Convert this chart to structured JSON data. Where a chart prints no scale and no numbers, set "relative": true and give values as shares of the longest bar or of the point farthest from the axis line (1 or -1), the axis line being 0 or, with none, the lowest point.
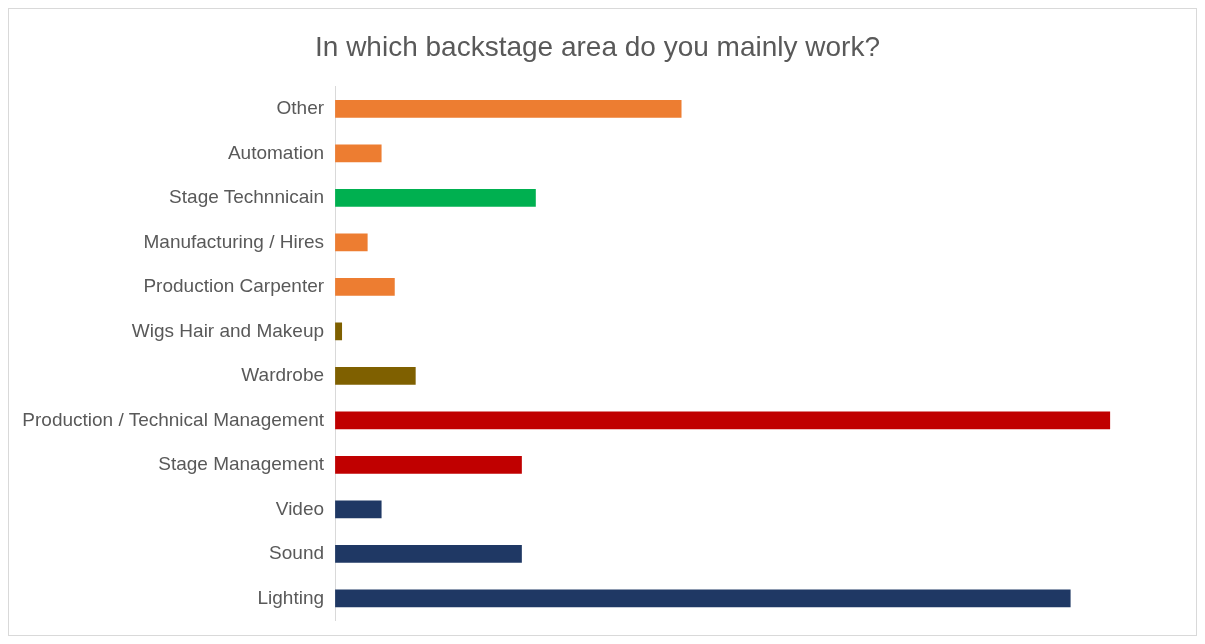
{
  "chart_data": {
    "type": "bar",
    "orientation": "horizontal",
    "relative": true,
    "title": "In which backstage area do you mainly work?",
    "categories": [
      "Other",
      "Automation",
      "Stage Technnicain",
      "Manufacturing / Hires",
      "Production Carpenter",
      "Wigs Hair and Makeup",
      "Wardrobe",
      "Production / Technical Management",
      "Stage Management",
      "Video",
      "Sound",
      "Lighting"
    ],
    "values": [
      0.447,
      0.06,
      0.259,
      0.042,
      0.077,
      0.009,
      0.104,
      1,
      0.241,
      0.06,
      0.241,
      0.949
    ],
    "colors": [
      "#ed7d31",
      "#ed7d31",
      "#00b050",
      "#ed7d31",
      "#ed7d31",
      "#7f6000",
      "#7f6000",
      "#c00000",
      "#c00000",
      "#1f3864",
      "#1f3864",
      "#1f3864"
    ]
  }
}
